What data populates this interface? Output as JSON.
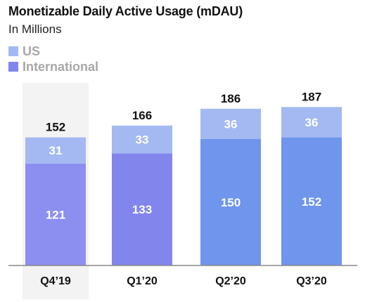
{
  "header": {
    "title": "Monetizable Daily Active Usage (mDAU)",
    "subtitle": "In Millions"
  },
  "colors": {
    "us": "#a4b9f2",
    "international_q4_19": "#8c8ef0",
    "international_q1_20": "#8185ec",
    "international_later": "#6f95ec",
    "highlight_bg": "#f3f3f3",
    "axis": "#888888"
  },
  "chart_data": {
    "type": "bar",
    "stacked": true,
    "title": "Monetizable Daily Active Usage (mDAU)",
    "subtitle": "In Millions",
    "categories": [
      "Q4’19",
      "Q1’20",
      "Q2’20",
      "Q3’20"
    ],
    "series": [
      {
        "name": "International",
        "values": [
          121,
          133,
          150,
          152
        ]
      },
      {
        "name": "US",
        "values": [
          31,
          33,
          36,
          36
        ]
      }
    ],
    "totals": [
      "152",
      "166",
      "186",
      "187"
    ],
    "legend": [
      "US",
      "International"
    ],
    "legend_position": "top-left",
    "highlighted_category": "Q4’19",
    "ylim": [
      0,
      200
    ]
  }
}
